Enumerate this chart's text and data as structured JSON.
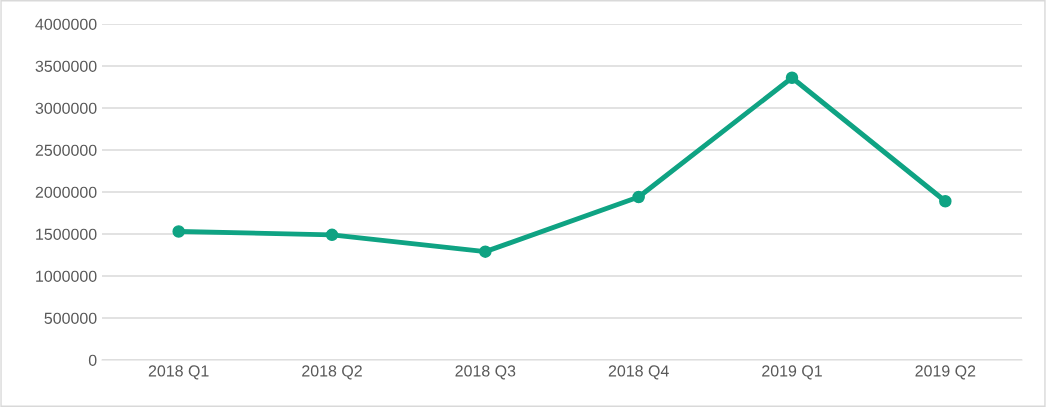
{
  "chart_data": {
    "type": "line",
    "categories": [
      "2018 Q1",
      "2018 Q2",
      "2018 Q3",
      "2018 Q4",
      "2019 Q1",
      "2019 Q2"
    ],
    "series": [
      {
        "color": "#0fa383",
        "values": [
          1530000,
          1490000,
          1290000,
          1940000,
          3360000,
          1890000
        ]
      }
    ],
    "ylim": [
      0,
      4000000
    ],
    "yticks": [
      0,
      500000,
      1000000,
      1500000,
      2000000,
      2500000,
      3000000,
      3500000,
      4000000
    ],
    "grid": "y",
    "marker": "circle",
    "line_style": "solid"
  }
}
